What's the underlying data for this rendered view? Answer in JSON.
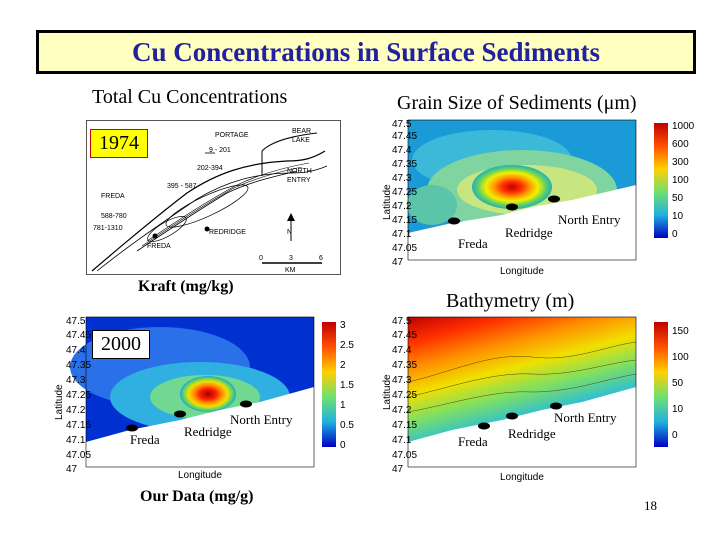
{
  "title": "Cu Concentrations in Surface Sediments",
  "left_header": "Total Cu Concentrations",
  "right_header": "Grain Size of Sediments (μm)",
  "year_1974": "1974",
  "year_2000": "2000",
  "caption_kraft": "Kraft (mg/kg)",
  "caption_bathymetry": "Bathymetry (m)",
  "caption_our_data": "Our Data (mg/g)",
  "page_number": "18",
  "map_1974": {
    "labels": {
      "portage": "PORTAGE",
      "bear_lake": "BEAR LAKE",
      "north_entry": "NORTH ENTRY",
      "freda_upper": "FREDA",
      "freda_lower": "FREDA",
      "redridge": "REDRIDGE",
      "km": "KM",
      "north_arrow": "N",
      "range_1": "9 - 201",
      "range_2": "202-394",
      "range_3": "395 - 587",
      "range_4": "588-780",
      "range_5": "781-1310",
      "scale_0": "0",
      "scale_3": "3",
      "scale_6": "6"
    }
  },
  "contour_panels": {
    "grain_size": {
      "sites": {
        "freda": "Freda",
        "redridge": "Redridge",
        "north_entry": "North Entry"
      },
      "xlabel": "Longitude",
      "ylabel": "Latitude",
      "yticks": [
        "47.5",
        "47.45",
        "47.4",
        "47.35",
        "47.3",
        "47.25",
        "47.2",
        "47.15",
        "47.1",
        "47.05",
        "47"
      ],
      "colorbar": [
        "1000",
        "600",
        "300",
        "100",
        "50",
        "10",
        "0"
      ]
    },
    "our_data": {
      "sites": {
        "freda": "Freda",
        "redridge": "Redridge",
        "north_entry": "North Entry"
      },
      "xlabel": "Longitude",
      "ylabel": "Latitude",
      "yticks": [
        "47.5",
        "47.45",
        "47.4",
        "47.35",
        "47.3",
        "47.25",
        "47.2",
        "47.15",
        "47.1",
        "47.05",
        "47"
      ],
      "colorbar": [
        "3",
        "2.5",
        "2",
        "1.5",
        "1",
        "0.5",
        "0"
      ]
    },
    "bathymetry": {
      "sites": {
        "freda": "Freda",
        "redridge": "Redridge",
        "north_entry": "North Entry"
      },
      "xlabel": "Longitude",
      "ylabel": "Latitude",
      "yticks": [
        "47.5",
        "47.45",
        "47.4",
        "47.35",
        "47.3",
        "47.25",
        "47.2",
        "47.15",
        "47.1",
        "47.05",
        "47"
      ],
      "colorbar": [
        "150",
        "100",
        "50",
        "10",
        "0"
      ]
    }
  },
  "colors": {
    "title_bg": "#ffffc0",
    "title_text": "#2020a0"
  }
}
